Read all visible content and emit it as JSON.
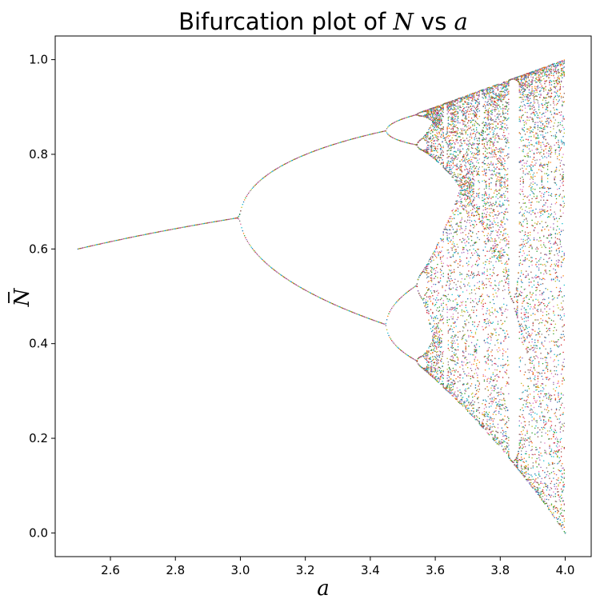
{
  "chart_data": {
    "type": "scatter",
    "title": {
      "prefix": "Bifurcation plot of ",
      "symbol": "N",
      "middle": " vs ",
      "variable": "a"
    },
    "xlabel": "a",
    "ylabel": "N",
    "xlim": [
      2.43,
      4.08
    ],
    "ylim": [
      -0.05,
      1.05
    ],
    "xticks": [
      2.6,
      2.8,
      3.0,
      3.2,
      3.4,
      3.6,
      3.8,
      4.0
    ],
    "xtick_labels": [
      "2.6",
      "2.8",
      "3.0",
      "3.2",
      "3.4",
      "3.6",
      "3.8",
      "4.0"
    ],
    "yticks": [
      0.0,
      0.2,
      0.4,
      0.6,
      0.8,
      1.0
    ],
    "ytick_labels": [
      "0.0",
      "0.2",
      "0.4",
      "0.6",
      "0.8",
      "1.0"
    ],
    "grid": false,
    "legend": "none",
    "a_range": [
      2.5,
      4.0
    ],
    "map": "N_next = a * N * (1 - N)",
    "point_colors": [
      "#1f77b4",
      "#ff7f0e",
      "#2ca02c",
      "#d62728",
      "#9467bd",
      "#8c564b",
      "#e377c2",
      "#7f7f7f",
      "#bcbd22",
      "#17becf"
    ]
  }
}
